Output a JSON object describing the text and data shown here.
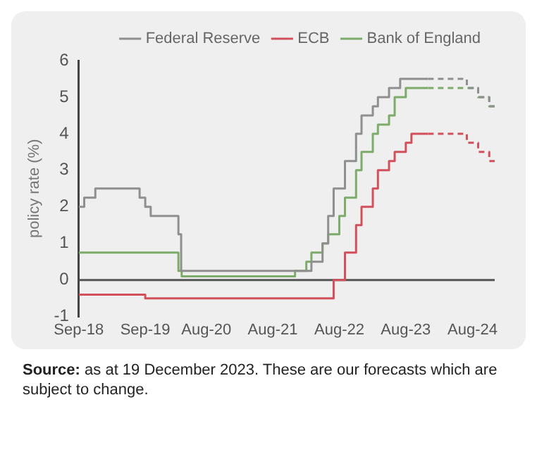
{
  "chart_data": {
    "type": "step",
    "ylabel": "policy rate (%)",
    "legend": "top",
    "grid": false,
    "line_style": "solid",
    "marker": "none",
    "xlim": [
      "2018-09",
      "2024-12"
    ],
    "ylim": [
      -1,
      6
    ],
    "yticks": [
      -1,
      0,
      1,
      2,
      3,
      4,
      5,
      6
    ],
    "xticks": [
      {
        "value": "2018-09",
        "label": "Sep-18"
      },
      {
        "value": "2019-09",
        "label": "Sep-19"
      },
      {
        "value": "2020-08",
        "label": "Aug-20"
      },
      {
        "value": "2021-08",
        "label": "Aug-21"
      },
      {
        "value": "2022-08",
        "label": "Aug-22"
      },
      {
        "value": "2023-08",
        "label": "Aug-23"
      },
      {
        "value": "2024-08",
        "label": "Aug-24"
      }
    ],
    "ref_lines": [
      {
        "axis": "y",
        "value": 0,
        "color": "#555555"
      }
    ],
    "series": [
      {
        "name": "Federal Reserve",
        "color": "#8f8f8f",
        "x": [
          "2018-09",
          "2018-10",
          "2018-12",
          "2019-08",
          "2019-09",
          "2019-10",
          "2020-03",
          "2020-03-16",
          "2022-03",
          "2022-05",
          "2022-06",
          "2022-07",
          "2022-09",
          "2022-11",
          "2022-12",
          "2023-02",
          "2023-03",
          "2023-05",
          "2023-07",
          "2023-12"
        ],
        "values": [
          2,
          2.25,
          2.5,
          2.25,
          2,
          1.75,
          1.25,
          0.25,
          0.5,
          1,
          1.75,
          2.5,
          3.25,
          4,
          4.5,
          4.75,
          5,
          5.25,
          5.5,
          5.5
        ]
      },
      {
        "name": "ECB",
        "color": "#d2505c",
        "x": [
          "2018-09",
          "2019-09",
          "2022-07",
          "2022-09",
          "2022-11",
          "2022-12",
          "2023-02",
          "2023-03",
          "2023-05",
          "2023-06",
          "2023-08",
          "2023-09",
          "2023-12"
        ],
        "values": [
          -0.4,
          -0.5,
          0,
          0.75,
          1.5,
          2,
          2.5,
          3,
          3.25,
          3.5,
          3.75,
          4,
          4
        ]
      },
      {
        "name": "Bank of England",
        "color": "#7cab6a",
        "x": [
          "2018-09",
          "2020-03",
          "2020-03-19",
          "2021-12",
          "2022-02",
          "2022-03",
          "2022-05",
          "2022-06",
          "2022-08",
          "2022-09",
          "2022-11",
          "2022-12",
          "2023-02",
          "2023-03",
          "2023-05",
          "2023-06",
          "2023-08",
          "2023-12"
        ],
        "values": [
          0.75,
          0.25,
          0.1,
          0.25,
          0.5,
          0.75,
          1,
          1.25,
          1.75,
          2.25,
          3,
          3.5,
          4,
          4.25,
          4.5,
          5,
          5.25,
          5.25
        ]
      },
      {
        "color": "#8f8f8f",
        "line_style": "dashed",
        "x": [
          "2023-12",
          "2024-06",
          "2024-07",
          "2024-09",
          "2024-11",
          "2024-12"
        ],
        "values": [
          5.5,
          5.5,
          5.25,
          5,
          4.75,
          4.75
        ]
      },
      {
        "color": "#d2505c",
        "line_style": "dashed",
        "x": [
          "2023-12",
          "2024-06",
          "2024-07",
          "2024-09",
          "2024-11",
          "2024-12"
        ],
        "values": [
          4,
          4,
          3.75,
          3.5,
          3.25,
          3.25
        ]
      },
      {
        "color": "#7cab6a",
        "line_style": "dashed",
        "x": [
          "2023-12",
          "2024-07",
          "2024-09",
          "2024-11",
          "2024-12"
        ],
        "values": [
          5.25,
          5.25,
          5,
          4.75,
          4.75
        ]
      }
    ],
    "annotations": [
      "Source: as at 19 December 2023. These are our forecasts which are subject to change."
    ]
  }
}
